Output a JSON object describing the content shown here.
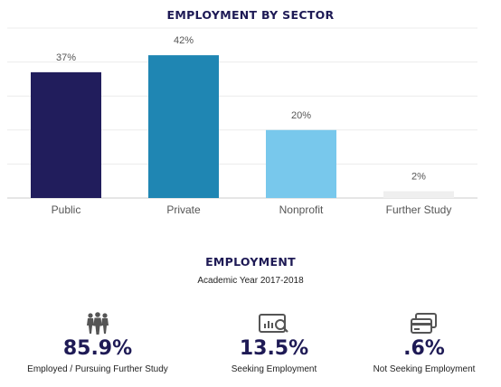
{
  "chart_data": {
    "type": "bar",
    "title": "EMPLOYMENT BY SECTOR",
    "categories": [
      "Public",
      "Private",
      "Nonprofit",
      "Further Study"
    ],
    "values": [
      37,
      42,
      20,
      2
    ],
    "value_labels": [
      "37%",
      "42%",
      "20%",
      "2%"
    ],
    "colors": [
      "#211d5c",
      "#1f86b3",
      "#78c8ec",
      "#efefef"
    ],
    "ylim": [
      0,
      50
    ],
    "grid": true,
    "legend": "none"
  },
  "employment": {
    "title": "EMPLOYMENT",
    "subtitle": "Academic Year 2017-2018",
    "stats": [
      {
        "value": "85.9%",
        "label": "Employed / Pursuing Further Study",
        "icon": "people-group-icon"
      },
      {
        "value": "13.5%",
        "label": "Seeking Employment",
        "icon": "search-screen-icon"
      },
      {
        "value": ".6%",
        "label": "Not Seeking Employment",
        "icon": "card-icon"
      }
    ]
  }
}
